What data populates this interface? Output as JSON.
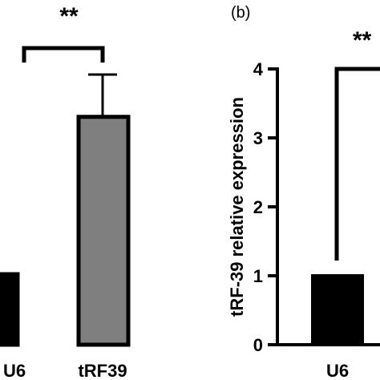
{
  "chart_data": [
    {
      "type": "bar",
      "panel_label": "",
      "categories": [
        "U6",
        "tRF39"
      ],
      "values": [
        1.0,
        3.23
      ],
      "error_upper": [
        0.0,
        0.6
      ],
      "colors": [
        "#000000",
        "#7f7f7f"
      ],
      "significance": "**",
      "ylabel": "",
      "ylim": [
        0,
        4
      ]
    },
    {
      "type": "bar",
      "panel_label": "(b)",
      "categories": [
        "U6"
      ],
      "values": [
        1.0
      ],
      "colors": [
        "#000000"
      ],
      "significance": "**",
      "ylabel": "tRF-39 relative expression",
      "ylim": [
        0,
        4
      ],
      "yticks": [
        "0",
        "1",
        "2",
        "3",
        "4"
      ]
    }
  ]
}
